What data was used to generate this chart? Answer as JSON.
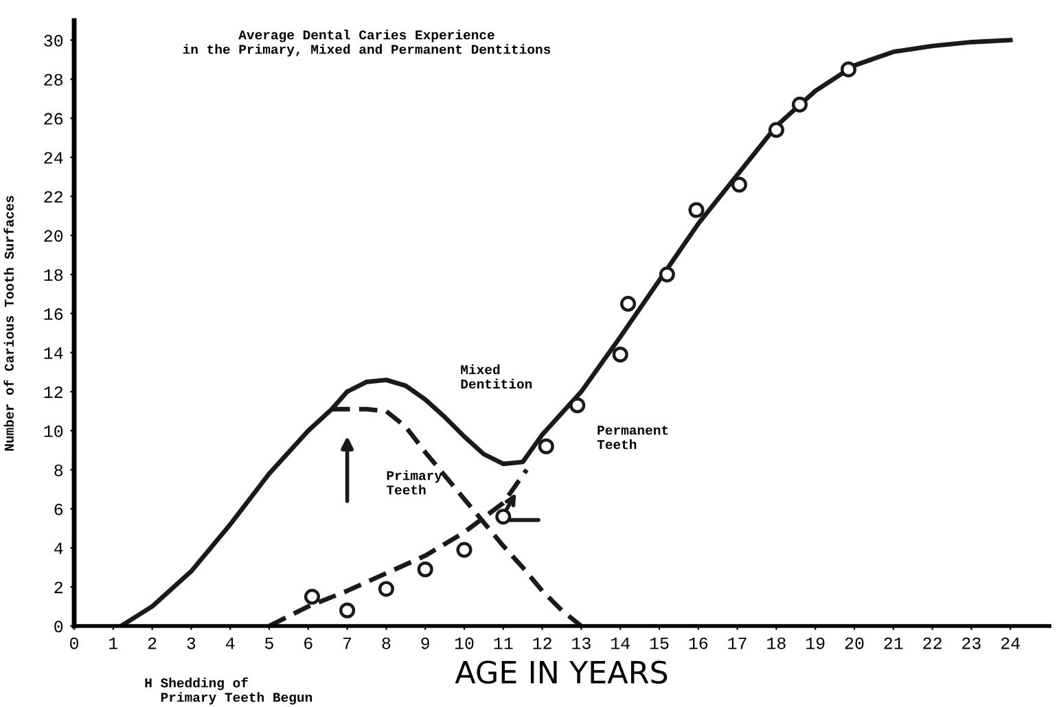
{
  "chart_data": {
    "type": "line",
    "title": "Average Dental Caries Experience\nin the Primary, Mixed and Permanent Dentitions",
    "xlabel": "AGE IN YEARS",
    "ylabel": "Number of Carious Tooth Surfaces",
    "series": [
      {
        "line_style": "solid",
        "color": "#1a1a1a",
        "x": [
          1.2,
          2,
          3,
          4,
          5,
          6,
          6.6,
          7,
          7.5,
          8,
          8.5,
          9,
          9.5,
          10,
          10.5,
          11,
          11.5,
          12,
          13,
          14,
          15,
          16,
          17,
          18,
          19,
          20,
          21,
          22,
          23,
          24
        ],
        "values": [
          0,
          1,
          2.8,
          5.2,
          7.8,
          10,
          11.1,
          12,
          12.5,
          12.6,
          12.3,
          11.6,
          10.7,
          9.7,
          8.8,
          8.3,
          8.4,
          9.8,
          12,
          14.8,
          17.7,
          20.6,
          23.1,
          25.6,
          27.4,
          28.7,
          29.4,
          29.7,
          29.9,
          30
        ]
      },
      {
        "line_style": "dashed",
        "color": "#1a1a1a",
        "x": [
          6.6,
          7,
          7.5,
          8,
          8.5,
          9,
          9.5,
          10,
          10.5,
          11,
          11.5,
          12,
          12.5,
          13
        ],
        "values": [
          11.1,
          11.1,
          11.1,
          11,
          10.2,
          8.9,
          7.7,
          6.5,
          5.3,
          4.1,
          3,
          1.8,
          0.8,
          0
        ]
      },
      {
        "line_style": "dashed",
        "color": "#1a1a1a",
        "x": [
          5,
          6,
          7,
          8,
          9,
          10,
          11,
          11.6
        ],
        "values": [
          0,
          1,
          1.8,
          2.7,
          3.6,
          4.8,
          6.3,
          8
        ]
      },
      {
        "type": "scatter",
        "marker": "circle",
        "color": "#1a1a1a",
        "x": [
          6.1,
          7,
          8,
          9,
          10,
          11,
          12.1,
          12.9,
          14,
          14.2,
          15.2,
          15.95,
          17.05,
          18,
          18.6,
          19.85
        ],
        "values": [
          1.5,
          0.8,
          1.9,
          2.9,
          3.9,
          5.6,
          9.2,
          11.3,
          13.9,
          16.5,
          18,
          21.3,
          22.6,
          25.4,
          26.7,
          28.5
        ]
      }
    ],
    "xlim": [
      0,
      25
    ],
    "ylim": [
      0,
      31
    ],
    "xticks": [
      0,
      1,
      2,
      3,
      4,
      5,
      6,
      7,
      8,
      9,
      10,
      11,
      12,
      13,
      14,
      15,
      16,
      17,
      18,
      19,
      20,
      21,
      22,
      23,
      24
    ],
    "yticks": [
      0,
      2,
      4,
      6,
      8,
      10,
      12,
      14,
      16,
      18,
      20,
      22,
      24,
      26,
      28,
      30
    ],
    "annotations": [
      "Mixed\nDentition",
      "Primary\nTeeth",
      "Permanent\nTeeth",
      "H Shedding of\n  Primary Teeth Begun"
    ],
    "grid": false,
    "legend": false
  }
}
